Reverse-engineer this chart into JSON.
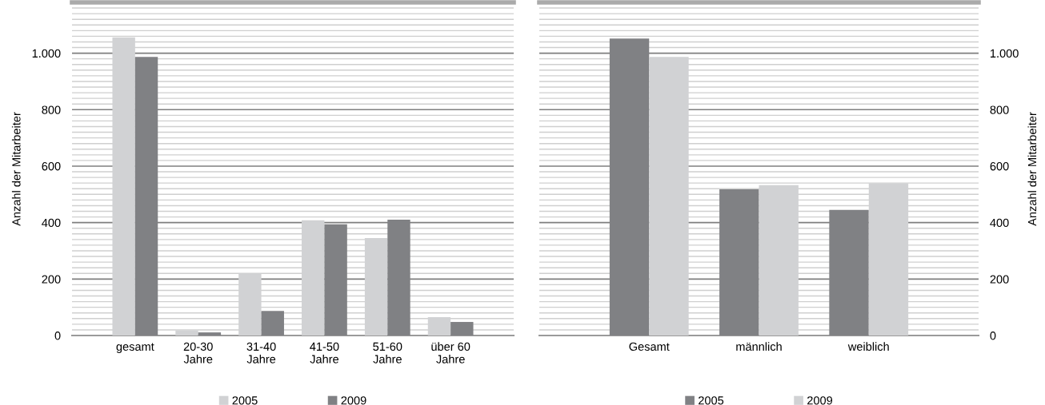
{
  "chart_data": [
    {
      "type": "bar",
      "ylabel": "Anzahl der Mitarbeiter",
      "categories": [
        "gesamt",
        "20-30\nJahre",
        "31-40\nJahre",
        "41-50\nJahre",
        "51-60\nJahre",
        "über 60\nJahre"
      ],
      "series": [
        {
          "name": "2005",
          "color": "#d1d2d4",
          "values": [
            1056,
            18,
            220,
            408,
            345,
            65
          ]
        },
        {
          "name": "2009",
          "color": "#808184",
          "values": [
            987,
            11,
            87,
            394,
            410,
            48
          ]
        }
      ],
      "ylim": [
        0,
        1180
      ],
      "yticks": [
        0,
        {
          "value": 20,
          "label": null
        },
        {
          "value": 40,
          "label": null
        },
        {
          "value": 60,
          "label": null
        },
        {
          "value": 80,
          "label": null
        },
        {
          "value": 100,
          "label": null
        },
        {
          "value": 120,
          "label": null
        },
        {
          "value": 140,
          "label": null
        },
        {
          "value": 160,
          "label": null
        },
        {
          "value": 180,
          "label": null
        },
        200,
        {
          "value": 220,
          "label": null
        },
        {
          "value": 240,
          "label": null
        },
        {
          "value": 260,
          "label": null
        },
        {
          "value": 280,
          "label": null
        },
        {
          "value": 300,
          "label": null
        },
        {
          "value": 320,
          "label": null
        },
        {
          "value": 340,
          "label": null
        },
        {
          "value": 360,
          "label": null
        },
        {
          "value": 380,
          "label": null
        },
        400,
        {
          "value": 420,
          "label": null
        },
        {
          "value": 440,
          "label": null
        },
        {
          "value": 460,
          "label": null
        },
        {
          "value": 480,
          "label": null
        },
        {
          "value": 500,
          "label": null
        },
        {
          "value": 520,
          "label": null
        },
        {
          "value": 540,
          "label": null
        },
        {
          "value": 560,
          "label": null
        },
        {
          "value": 580,
          "label": null
        },
        600,
        {
          "value": 620,
          "label": null
        },
        {
          "value": 640,
          "label": null
        },
        {
          "value": 660,
          "label": null
        },
        {
          "value": 680,
          "label": null
        },
        {
          "value": 700,
          "label": null
        },
        {
          "value": 720,
          "label": null
        },
        {
          "value": 740,
          "label": null
        },
        {
          "value": 760,
          "label": null
        },
        {
          "value": 780,
          "label": null
        },
        800,
        {
          "value": 820,
          "label": null
        },
        {
          "value": 840,
          "label": null
        },
        {
          "value": 860,
          "label": null
        },
        {
          "value": 880,
          "label": null
        },
        {
          "value": 900,
          "label": null
        },
        {
          "value": 920,
          "label": null
        },
        {
          "value": 940,
          "label": null
        },
        {
          "value": 960,
          "label": null
        },
        {
          "value": 980,
          "label": null
        },
        {
          "value": 1000,
          "label": "1.000"
        },
        {
          "value": 1020,
          "label": null
        },
        {
          "value": 1040,
          "label": null
        },
        {
          "value": 1060,
          "label": null
        },
        {
          "value": 1080,
          "label": null
        },
        {
          "value": 1100,
          "label": null
        },
        {
          "value": 1120,
          "label": null
        },
        {
          "value": 1140,
          "label": null
        },
        {
          "value": 1160,
          "label": null
        }
      ],
      "grid": "y",
      "legend": "bottom"
    },
    {
      "type": "bar",
      "y2label": "Anzahl der Mitarbeiter",
      "categories": [
        "Gesamt",
        "männlich",
        "weiblich"
      ],
      "series": [
        {
          "name": "2005",
          "color": "#808184",
          "values": [
            1052,
            518,
            445
          ],
          "axis": "y2"
        },
        {
          "name": "2009",
          "color": "#d1d2d4",
          "values": [
            987,
            533,
            539
          ],
          "axis": "y2"
        }
      ],
      "y2lim": [
        0,
        1180
      ],
      "y2ticks": [
        0,
        {
          "value": 20,
          "label": null
        },
        {
          "value": 40,
          "label": null
        },
        {
          "value": 60,
          "label": null
        },
        {
          "value": 80,
          "label": null
        },
        {
          "value": 100,
          "label": null
        },
        {
          "value": 120,
          "label": null
        },
        {
          "value": 140,
          "label": null
        },
        {
          "value": 160,
          "label": null
        },
        {
          "value": 180,
          "label": null
        },
        200,
        {
          "value": 220,
          "label": null
        },
        {
          "value": 240,
          "label": null
        },
        {
          "value": 260,
          "label": null
        },
        {
          "value": 280,
          "label": null
        },
        {
          "value": 300,
          "label": null
        },
        {
          "value": 320,
          "label": null
        },
        {
          "value": 340,
          "label": null
        },
        {
          "value": 360,
          "label": null
        },
        {
          "value": 380,
          "label": null
        },
        400,
        {
          "value": 420,
          "label": null
        },
        {
          "value": 440,
          "label": null
        },
        {
          "value": 460,
          "label": null
        },
        {
          "value": 480,
          "label": null
        },
        {
          "value": 500,
          "label": null
        },
        {
          "value": 520,
          "label": null
        },
        {
          "value": 540,
          "label": null
        },
        {
          "value": 560,
          "label": null
        },
        {
          "value": 580,
          "label": null
        },
        600,
        {
          "value": 620,
          "label": null
        },
        {
          "value": 640,
          "label": null
        },
        {
          "value": 660,
          "label": null
        },
        {
          "value": 680,
          "label": null
        },
        {
          "value": 700,
          "label": null
        },
        {
          "value": 720,
          "label": null
        },
        {
          "value": 740,
          "label": null
        },
        {
          "value": 760,
          "label": null
        },
        {
          "value": 780,
          "label": null
        },
        800,
        {
          "value": 820,
          "label": null
        },
        {
          "value": 840,
          "label": null
        },
        {
          "value": 860,
          "label": null
        },
        {
          "value": 880,
          "label": null
        },
        {
          "value": 900,
          "label": null
        },
        {
          "value": 920,
          "label": null
        },
        {
          "value": 940,
          "label": null
        },
        {
          "value": 960,
          "label": null
        },
        {
          "value": 980,
          "label": null
        },
        {
          "value": 1000,
          "label": "1.000"
        },
        {
          "value": 1020,
          "label": null
        },
        {
          "value": 1040,
          "label": null
        },
        {
          "value": 1060,
          "label": null
        },
        {
          "value": 1080,
          "label": null
        },
        {
          "value": 1100,
          "label": null
        },
        {
          "value": 1120,
          "label": null
        },
        {
          "value": 1140,
          "label": null
        },
        {
          "value": 1160,
          "label": null
        }
      ],
      "grid": "y",
      "legend": "bottom"
    }
  ]
}
